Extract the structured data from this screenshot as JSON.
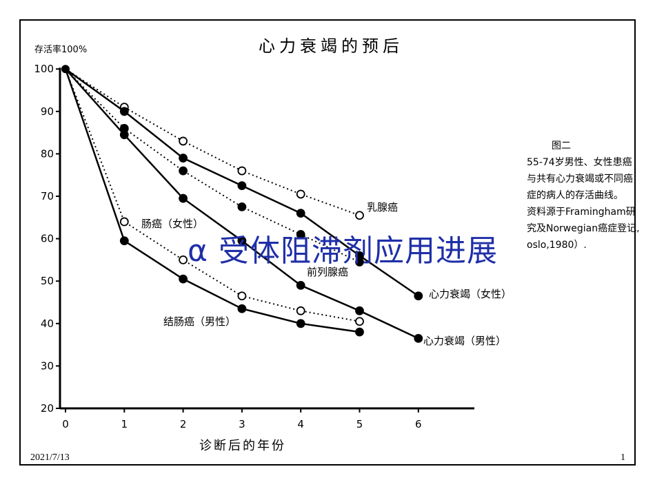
{
  "slide": {
    "overlay_title": "α 受体阻滞剂应用进展",
    "date": "2021/7/13",
    "page_number": "1",
    "overlay_color": "#1f2fa8"
  },
  "note": {
    "title": "图二",
    "lines": [
      "55-74岁男性、女性患癌",
      "与共有心力衰竭或不同癌",
      "症的病人的存活曲线。",
      "资料源于Framingham研",
      "究及Norwegian癌症登记,",
      "oslo,1980）."
    ]
  },
  "chart_data": {
    "type": "line",
    "title": "心力衰竭的预后",
    "ylabel": "存活率100%",
    "xlabel": "诊断后的年份",
    "x": [
      0,
      1,
      2,
      3,
      4,
      5,
      6
    ],
    "xticks": [
      "0",
      "1",
      "2",
      "3",
      "4",
      "5",
      "6"
    ],
    "yticks": [
      "20",
      "30",
      "40",
      "50",
      "60",
      "70",
      "80",
      "90",
      "100"
    ],
    "xlim": [
      0,
      7
    ],
    "ylim": [
      20,
      100
    ],
    "grid": false,
    "series": [
      {
        "name": "乳腺癌",
        "x": [
          0,
          1,
          2,
          3,
          4,
          5
        ],
        "values": [
          100,
          91,
          83,
          76,
          70.5,
          65.5
        ],
        "marker": "open",
        "line": "dotted"
      },
      {
        "name": "心力衰竭（女性）",
        "x": [
          0,
          1,
          2,
          3,
          4,
          5,
          6
        ],
        "values": [
          100,
          90,
          79,
          72.5,
          66,
          56,
          46.5
        ],
        "marker": "filled",
        "line": "solid"
      },
      {
        "name": "前列腺癌",
        "x": [
          0,
          1,
          2,
          3,
          4,
          5
        ],
        "values": [
          100,
          86,
          76,
          67.5,
          61,
          54.5
        ],
        "marker": "filled",
        "line": "dotted"
      },
      {
        "name": "心力衰竭（男性）",
        "x": [
          0,
          1,
          2,
          3,
          4,
          5,
          6
        ],
        "values": [
          100,
          84.5,
          69.5,
          59.5,
          49,
          43,
          36.5
        ],
        "marker": "filled",
        "line": "solid"
      },
      {
        "name": "肠癌（女性）",
        "x": [
          0,
          1,
          2,
          3,
          4,
          5
        ],
        "values": [
          100,
          64,
          55,
          46.5,
          43,
          40.5
        ],
        "marker": "open",
        "line": "dotted"
      },
      {
        "name": "结肠癌（男性）",
        "x": [
          0,
          1,
          2,
          3,
          4,
          5
        ],
        "values": [
          100,
          59.5,
          50.5,
          43.5,
          40,
          38
        ],
        "marker": "filled",
        "line": "solid"
      }
    ]
  }
}
